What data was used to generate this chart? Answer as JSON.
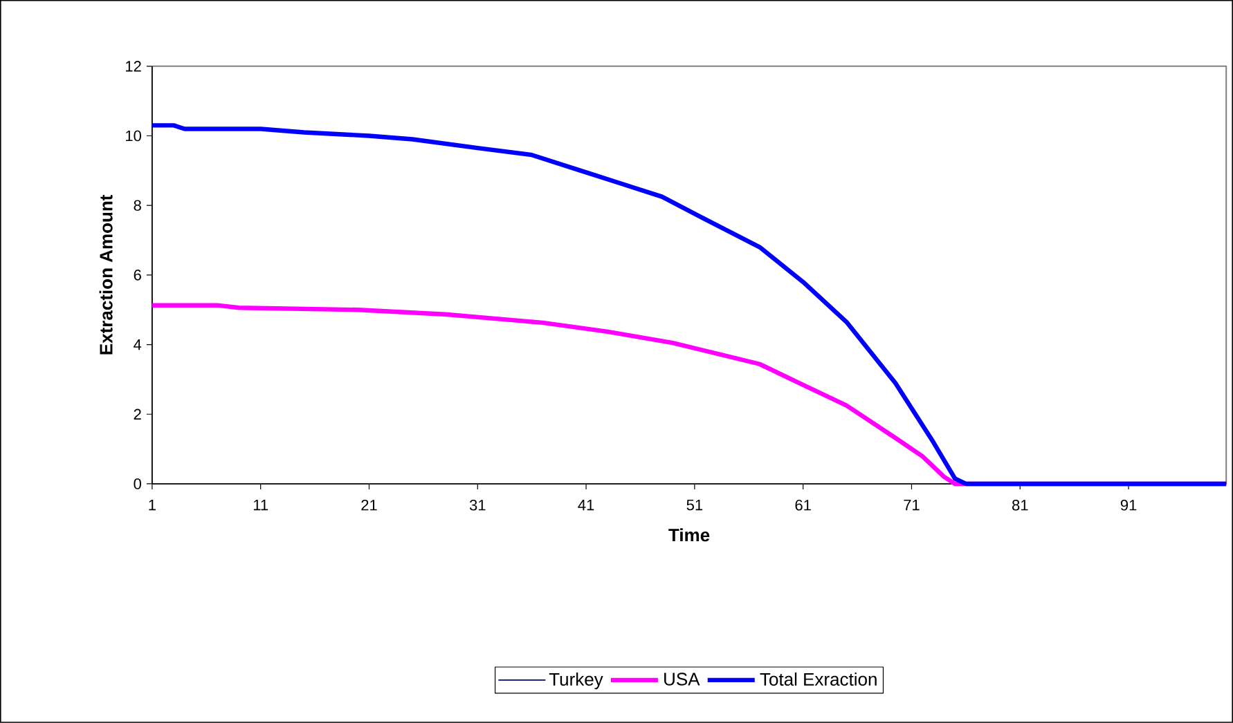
{
  "chart_data": {
    "type": "line",
    "xlabel": "Time",
    "ylabel": "Extraction Amount",
    "xlim": [
      1,
      100
    ],
    "xticks": [
      1,
      11,
      21,
      31,
      41,
      51,
      61,
      71,
      81,
      91
    ],
    "ylim": [
      0,
      12
    ],
    "yticks": [
      0,
      2,
      4,
      6,
      8,
      10,
      12
    ],
    "legend": "bottom",
    "marker": "none",
    "line_style": "solid",
    "grid": false,
    "series": [
      {
        "name": "Turkey",
        "color": "#000080"
      },
      {
        "name": "USA",
        "color": "#ff00ff",
        "x": [
          1,
          7,
          9,
          20,
          28,
          37,
          43,
          49,
          57,
          61,
          65,
          69.5,
          72,
          74,
          75,
          76,
          100
        ],
        "values": [
          5.13,
          5.13,
          5.06,
          5.0,
          4.87,
          4.63,
          4.37,
          4.05,
          3.44,
          2.84,
          2.25,
          1.32,
          0.79,
          0.2,
          0,
          0,
          0
        ]
      },
      {
        "name": "Total Exraction",
        "color": "#0000ff",
        "x": [
          1,
          3,
          4,
          11,
          15,
          21,
          25,
          31,
          36,
          41,
          45,
          48,
          52,
          57,
          61,
          65,
          69.5,
          73,
          75,
          76,
          100
        ],
        "values": [
          10.3,
          10.3,
          10.2,
          10.2,
          10.1,
          10.0,
          9.9,
          9.65,
          9.45,
          8.95,
          8.55,
          8.25,
          7.6,
          6.8,
          5.8,
          4.65,
          2.9,
          1.2,
          0.15,
          0,
          0
        ]
      }
    ]
  }
}
